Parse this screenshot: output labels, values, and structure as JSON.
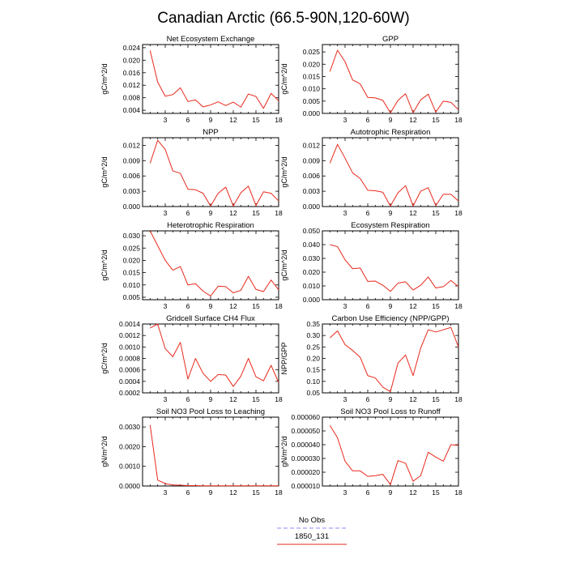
{
  "page_title": "Canadian Arctic (66.5-90N,120-60W)",
  "legend": {
    "entries": [
      {
        "label": "No Obs",
        "color": "#8888ff",
        "dash": true
      },
      {
        "label": "1850_131",
        "color": "#e8291c",
        "dash": false
      }
    ]
  },
  "chart_data": [
    {
      "type": "line",
      "title": "Net Ecosystem Exchange",
      "ylabel": "gC/m^2/d",
      "xlim": [
        0,
        18
      ],
      "ylim": [
        0.003,
        0.025
      ],
      "xticks": [
        3,
        6,
        9,
        12,
        15,
        18
      ],
      "xtick_labels": [
        "3",
        "6",
        "9",
        "12",
        "15",
        "18"
      ],
      "yticks": [
        0.004,
        0.008,
        0.012,
        0.016,
        0.02,
        0.024
      ],
      "ytick_labels": [
        "0.004",
        "0.008",
        "0.012",
        "0.016",
        "0.020",
        "0.024"
      ],
      "series": [
        {
          "color": "#e8291c",
          "x": [
            1,
            2,
            3,
            4,
            5,
            6,
            7,
            8,
            9,
            10,
            11,
            12,
            13,
            14,
            15,
            16,
            17,
            18
          ],
          "y": [
            0.0231,
            0.013,
            0.0085,
            0.009,
            0.0112,
            0.0068,
            0.0073,
            0.0051,
            0.0057,
            0.0067,
            0.0055,
            0.0066,
            0.005,
            0.0092,
            0.0084,
            0.0046,
            0.0094,
            0.007
          ]
        }
      ]
    },
    {
      "type": "line",
      "title": "GPP",
      "ylabel": "gC/m^2/d",
      "xlim": [
        0,
        18
      ],
      "ylim": [
        0,
        0.028
      ],
      "xticks": [
        3,
        6,
        9,
        12,
        15,
        18
      ],
      "xtick_labels": [
        "3",
        "6",
        "9",
        "12",
        "15",
        "18"
      ],
      "yticks": [
        0,
        0.005,
        0.01,
        0.015,
        0.02,
        0.025
      ],
      "ytick_labels": [
        "0.000",
        "0.005",
        "0.010",
        "0.015",
        "0.020",
        "0.025"
      ],
      "series": [
        {
          "color": "#e8291c",
          "x": [
            1,
            2,
            3,
            4,
            5,
            6,
            7,
            8,
            9,
            10,
            11,
            12,
            13,
            14,
            15,
            16,
            17,
            18
          ],
          "y": [
            0.017,
            0.0257,
            0.021,
            0.0136,
            0.012,
            0.0065,
            0.0063,
            0.0053,
            0.0002,
            0.0053,
            0.008,
            0.0003,
            0.0055,
            0.0078,
            0.0005,
            0.005,
            0.0045,
            0.0015
          ]
        }
      ]
    },
    {
      "type": "line",
      "title": "NPP",
      "ylabel": "gC/m^2/d",
      "xlim": [
        0,
        18
      ],
      "ylim": [
        0,
        0.0135
      ],
      "xticks": [
        3,
        6,
        9,
        12,
        15,
        18
      ],
      "xtick_labels": [
        "3",
        "6",
        "9",
        "12",
        "15",
        "18"
      ],
      "yticks": [
        0,
        0.003,
        0.006,
        0.009,
        0.012
      ],
      "ytick_labels": [
        "0.000",
        "0.003",
        "0.006",
        "0.009",
        "0.012"
      ],
      "series": [
        {
          "color": "#e8291c",
          "x": [
            1,
            2,
            3,
            4,
            5,
            6,
            7,
            8,
            9,
            10,
            11,
            12,
            13,
            14,
            15,
            16,
            17,
            18
          ],
          "y": [
            0.0085,
            0.013,
            0.0112,
            0.007,
            0.0065,
            0.0034,
            0.0033,
            0.0026,
            0.0001,
            0.0026,
            0.0038,
            0.0001,
            0.0027,
            0.004,
            0.0002,
            0.0029,
            0.0026,
            0.0011
          ]
        }
      ]
    },
    {
      "type": "line",
      "title": "Autotrophic Respiration",
      "ylabel": "gC/m^2/d",
      "xlim": [
        0,
        18
      ],
      "ylim": [
        0,
        0.0135
      ],
      "xticks": [
        3,
        6,
        9,
        12,
        15,
        18
      ],
      "xtick_labels": [
        "3",
        "6",
        "9",
        "12",
        "15",
        "18"
      ],
      "yticks": [
        0,
        0.003,
        0.006,
        0.009,
        0.012
      ],
      "ytick_labels": [
        "0.000",
        "0.003",
        "0.006",
        "0.009",
        "0.012"
      ],
      "series": [
        {
          "color": "#e8291c",
          "x": [
            1,
            2,
            3,
            4,
            5,
            6,
            7,
            8,
            9,
            10,
            11,
            12,
            13,
            14,
            15,
            16,
            17,
            18
          ],
          "y": [
            0.0085,
            0.0122,
            0.0095,
            0.0066,
            0.0055,
            0.0032,
            0.0031,
            0.0028,
            0.0001,
            0.0027,
            0.0041,
            0.0001,
            0.003,
            0.0037,
            0.0002,
            0.0024,
            0.0024,
            0.0011
          ]
        }
      ]
    },
    {
      "type": "line",
      "title": "Heterotrophic Respiration",
      "ylabel": "gC/m^2/d",
      "xlim": [
        0,
        18
      ],
      "ylim": [
        0.004,
        0.032
      ],
      "xticks": [
        3,
        6,
        9,
        12,
        15,
        18
      ],
      "xtick_labels": [
        "3",
        "6",
        "9",
        "12",
        "15",
        "18"
      ],
      "yticks": [
        0.005,
        0.01,
        0.015,
        0.02,
        0.025,
        0.03
      ],
      "ytick_labels": [
        "0.005",
        "0.010",
        "0.015",
        "0.020",
        "0.025",
        "0.030"
      ],
      "series": [
        {
          "color": "#e8291c",
          "x": [
            1,
            2,
            3,
            4,
            5,
            6,
            7,
            8,
            9,
            10,
            11,
            12,
            13,
            14,
            15,
            16,
            17,
            18
          ],
          "y": [
            0.032,
            0.026,
            0.02,
            0.016,
            0.0175,
            0.01,
            0.0105,
            0.0075,
            0.0055,
            0.0095,
            0.0093,
            0.0068,
            0.0078,
            0.0135,
            0.0082,
            0.0073,
            0.012,
            0.008
          ]
        }
      ]
    },
    {
      "type": "line",
      "title": "Ecosystem Respiration",
      "ylabel": "gC/m^2/d",
      "xlim": [
        0,
        18
      ],
      "ylim": [
        0,
        0.05
      ],
      "xticks": [
        3,
        6,
        9,
        12,
        15,
        18
      ],
      "xtick_labels": [
        "3",
        "6",
        "9",
        "12",
        "15",
        "18"
      ],
      "yticks": [
        0,
        0.01,
        0.02,
        0.03,
        0.04,
        0.05
      ],
      "ytick_labels": [
        "0.000",
        "0.010",
        "0.020",
        "0.030",
        "0.040",
        "0.050"
      ],
      "series": [
        {
          "color": "#e8291c",
          "x": [
            1,
            2,
            3,
            4,
            5,
            6,
            7,
            8,
            9,
            10,
            11,
            12,
            13,
            14,
            15,
            16,
            17,
            18
          ],
          "y": [
            0.04,
            0.0385,
            0.029,
            0.0225,
            0.023,
            0.0133,
            0.0135,
            0.0105,
            0.006,
            0.012,
            0.013,
            0.007,
            0.0105,
            0.0165,
            0.0085,
            0.0095,
            0.014,
            0.0095
          ]
        }
      ]
    },
    {
      "type": "line",
      "title": "Gridcell Surface CH4 Flux",
      "ylabel": "gC/m^2/d",
      "xlim": [
        0,
        18
      ],
      "ylim": [
        0.0002,
        0.0014
      ],
      "xticks": [
        3,
        6,
        9,
        12,
        15,
        18
      ],
      "xtick_labels": [
        "3",
        "6",
        "9",
        "12",
        "15",
        "18"
      ],
      "yticks": [
        0.0002,
        0.0004,
        0.0006,
        0.0008,
        0.001,
        0.0012,
        0.0014
      ],
      "ytick_labels": [
        "0.0002",
        "0.0004",
        "0.0006",
        "0.0008",
        "0.0010",
        "0.0012",
        "0.0014"
      ],
      "series": [
        {
          "color": "#e8291c",
          "x": [
            1,
            2,
            3,
            4,
            5,
            6,
            7,
            8,
            9,
            10,
            11,
            12,
            13,
            14,
            15,
            16,
            17,
            18
          ],
          "y": [
            0.00133,
            0.0014,
            0.00097,
            0.00083,
            0.00108,
            0.00044,
            0.0008,
            0.00054,
            0.0004,
            0.00052,
            0.00051,
            0.00031,
            0.00049,
            0.0008,
            0.00048,
            0.00041,
            0.00068,
            0.00038
          ]
        }
      ]
    },
    {
      "type": "line",
      "title": "Carbon Use Efficiency (NPP/GPP)",
      "ylabel": "NPP/GPP",
      "xlim": [
        0,
        18
      ],
      "ylim": [
        0.05,
        0.35
      ],
      "xticks": [
        3,
        6,
        9,
        12,
        15,
        18
      ],
      "xtick_labels": [
        "3",
        "6",
        "9",
        "12",
        "15",
        "18"
      ],
      "yticks": [
        0.05,
        0.1,
        0.15,
        0.2,
        0.25,
        0.3,
        0.35
      ],
      "ytick_labels": [
        "0.05",
        "0.10",
        "0.15",
        "0.20",
        "0.25",
        "0.30",
        "0.35"
      ],
      "series": [
        {
          "color": "#e8291c",
          "x": [
            1,
            2,
            3,
            4,
            5,
            6,
            7,
            8,
            9,
            10,
            11,
            12,
            13,
            14,
            15,
            16,
            17,
            18
          ],
          "y": [
            0.29,
            0.32,
            0.26,
            0.235,
            0.205,
            0.125,
            0.115,
            0.075,
            0.055,
            0.18,
            0.215,
            0.125,
            0.245,
            0.325,
            0.315,
            0.325,
            0.335,
            0.25
          ]
        }
      ]
    },
    {
      "type": "line",
      "title": "Soil NO3 Pool Loss to Leaching",
      "ylabel": "gN/m^2/d",
      "xlim": [
        0,
        18
      ],
      "ylim": [
        0,
        0.0035
      ],
      "xticks": [
        3,
        6,
        9,
        12,
        15,
        18
      ],
      "xtick_labels": [
        "3",
        "6",
        "9",
        "12",
        "15",
        "18"
      ],
      "yticks": [
        0,
        0.001,
        0.002,
        0.003
      ],
      "ytick_labels": [
        "0.0000",
        "0.0010",
        "0.0020",
        "0.0030"
      ],
      "series": [
        {
          "color": "#e8291c",
          "x": [
            1,
            2,
            3,
            4,
            5,
            6,
            7,
            8,
            9,
            10,
            11,
            12,
            13,
            14,
            15,
            16,
            17,
            18
          ],
          "y": [
            0.0031,
            0.0003,
            0.00012,
            5e-05,
            4e-05,
            2e-05,
            2e-05,
            1e-05,
            1e-05,
            1e-05,
            1e-05,
            1e-05,
            1e-05,
            1e-05,
            1e-05,
            1e-05,
            1e-05,
            1e-05
          ]
        }
      ]
    },
    {
      "type": "line",
      "title": "Soil NO3 Pool Loss to Runoff",
      "ylabel": "gN/m^2/d",
      "xlim": [
        0,
        18
      ],
      "ylim": [
        1e-05,
        6e-05
      ],
      "xticks": [
        3,
        6,
        9,
        12,
        15,
        18
      ],
      "xtick_labels": [
        "3",
        "6",
        "9",
        "12",
        "15",
        "18"
      ],
      "yticks": [
        1e-05,
        2e-05,
        3e-05,
        4e-05,
        5e-05,
        6e-05
      ],
      "ytick_labels": [
        "0.000010",
        "0.000020",
        "0.000030",
        "0.000040",
        "0.000050",
        "0.000060"
      ],
      "series": [
        {
          "color": "#e8291c",
          "x": [
            1,
            2,
            3,
            4,
            5,
            6,
            7,
            8,
            9,
            10,
            11,
            12,
            13,
            14,
            15,
            16,
            17,
            18
          ],
          "y": [
            5.4e-05,
            4.5e-05,
            2.8e-05,
            2.1e-05,
            2.1e-05,
            1.7e-05,
            1.75e-05,
            1.85e-05,
            1.1e-05,
            2.85e-05,
            2.65e-05,
            1.35e-05,
            1.75e-05,
            3.45e-05,
            3.1e-05,
            2.8e-05,
            4e-05,
            3.95e-05
          ]
        }
      ]
    }
  ]
}
